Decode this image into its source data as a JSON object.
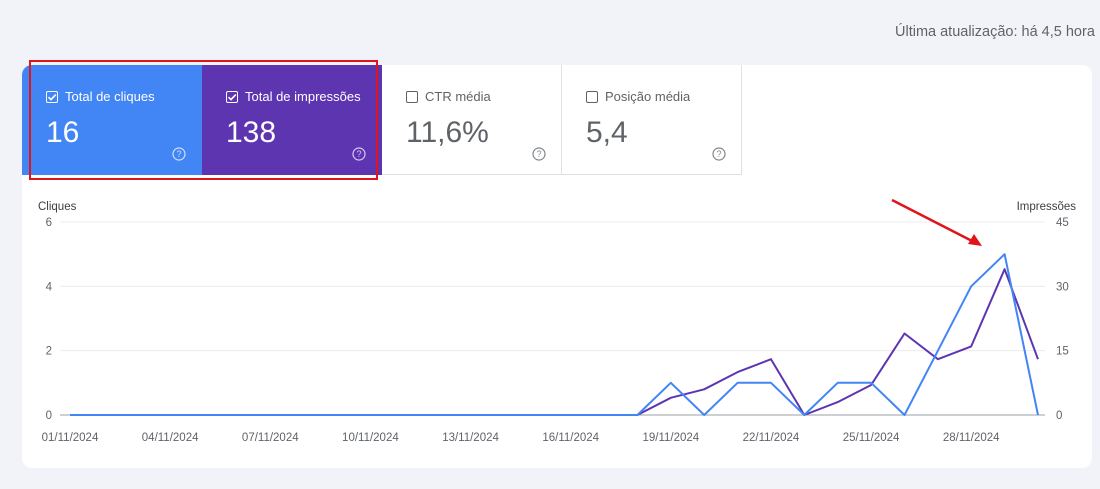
{
  "header": {
    "last_update": "Última atualização: há 4,5 hora"
  },
  "metrics": [
    {
      "label": "Total de cliques",
      "value": "16",
      "checked": true,
      "color": "#4285f4"
    },
    {
      "label": "Total de impressões",
      "value": "138",
      "checked": true,
      "color": "#5e35b1"
    },
    {
      "label": "CTR média",
      "value": "11,6%",
      "checked": false,
      "color": "#ffffff"
    },
    {
      "label": "Posição média",
      "value": "5,4",
      "checked": false,
      "color": "#ffffff"
    }
  ],
  "chart_data": {
    "type": "line",
    "xlabel": "",
    "ylabel_left": "Cliques",
    "ylabel_right": "Impressões",
    "ylim_left": [
      0,
      6
    ],
    "ylim_right": [
      0,
      45
    ],
    "yticks_left": [
      "0",
      "2",
      "4",
      "6"
    ],
    "yticks_right": [
      "0",
      "15",
      "30",
      "45"
    ],
    "x_ticks": [
      "01/11/2024",
      "04/11/2024",
      "07/11/2024",
      "10/11/2024",
      "13/11/2024",
      "16/11/2024",
      "19/11/2024",
      "22/11/2024",
      "25/11/2024",
      "28/11/2024"
    ],
    "x": [
      "01/11/2024",
      "02/11/2024",
      "03/11/2024",
      "04/11/2024",
      "05/11/2024",
      "06/11/2024",
      "07/11/2024",
      "08/11/2024",
      "09/11/2024",
      "10/11/2024",
      "11/11/2024",
      "12/11/2024",
      "13/11/2024",
      "14/11/2024",
      "15/11/2024",
      "16/11/2024",
      "17/11/2024",
      "18/11/2024",
      "19/11/2024",
      "20/11/2024",
      "21/11/2024",
      "22/11/2024",
      "23/11/2024",
      "24/11/2024",
      "25/11/2024",
      "26/11/2024",
      "27/11/2024",
      "28/11/2024",
      "29/11/2024",
      "30/11/2024"
    ],
    "series": [
      {
        "name": "Cliques",
        "axis": "left",
        "color": "#4285f4",
        "values": [
          0,
          0,
          0,
          0,
          0,
          0,
          0,
          0,
          0,
          0,
          0,
          0,
          0,
          0,
          0,
          0,
          0,
          0,
          1,
          0,
          1,
          1,
          0,
          1,
          1,
          0,
          2,
          4,
          5,
          0
        ]
      },
      {
        "name": "Impressões",
        "axis": "right",
        "color": "#5e35b1",
        "values": [
          0,
          0,
          0,
          0,
          0,
          0,
          0,
          0,
          0,
          0,
          0,
          0,
          0,
          0,
          0,
          0,
          0,
          0,
          4,
          6,
          10,
          13,
          0,
          3,
          7,
          19,
          13,
          16,
          34,
          13
        ]
      }
    ],
    "grid": true,
    "annotation": {
      "type": "arrow",
      "color": "#e0141b"
    }
  }
}
